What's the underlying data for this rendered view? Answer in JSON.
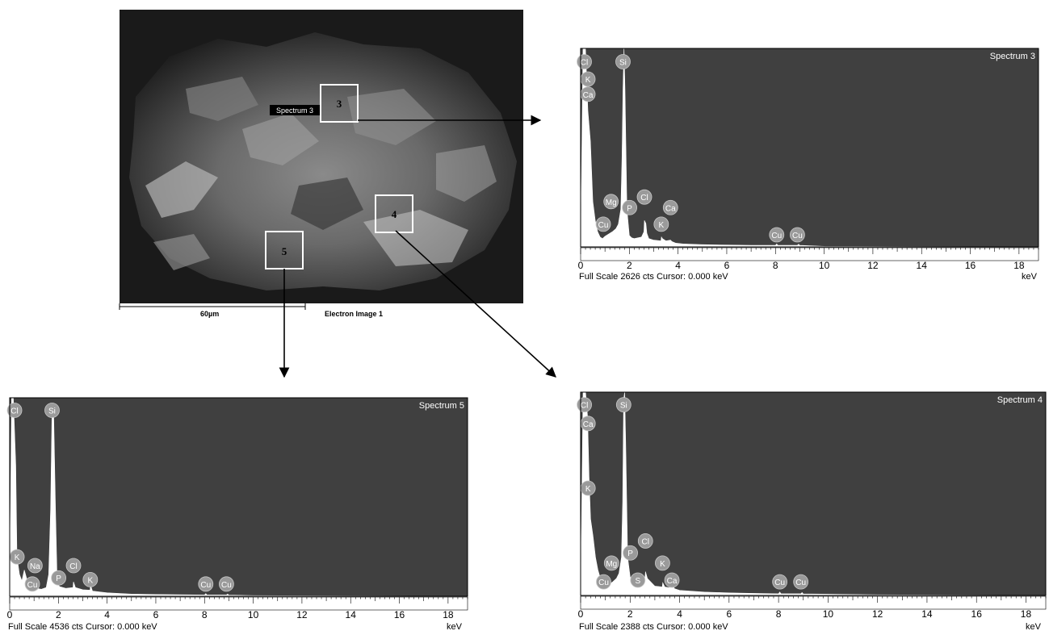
{
  "sem_image": {
    "scale_bar": "60µm",
    "image_title": "Electron Image 1",
    "regions": [
      {
        "number": "5",
        "label": ""
      },
      {
        "number": "3",
        "label": "Spectrum 3"
      },
      {
        "number": "4",
        "label": ""
      }
    ]
  },
  "colors": {
    "plot_background": "#404040",
    "spectrum_fill": "#ffffff",
    "peak_marker": "#9a9a9a",
    "arrow": "#000000"
  },
  "chart_data": [
    {
      "type": "area",
      "title": "Spectrum 3",
      "caption": "Full Scale 2626 cts  Cursor: 0.000 keV",
      "xlabel": "keV",
      "xlim": [
        0,
        18.8
      ],
      "xticks": [
        0,
        2,
        4,
        6,
        8,
        10,
        12,
        14,
        16,
        18
      ],
      "ylim": [
        0,
        2626
      ],
      "profile_x": [
        0,
        0.1,
        0.2,
        0.3,
        0.4,
        0.5,
        0.6,
        0.7,
        0.8,
        0.9,
        1.0,
        1.2,
        1.3,
        1.45,
        1.55,
        1.65,
        1.7,
        1.74,
        1.78,
        1.82,
        1.9,
        2.0,
        2.1,
        2.2,
        2.5,
        2.6,
        2.62,
        2.68,
        2.72,
        2.8,
        3.0,
        3.3,
        3.32,
        3.36,
        3.5,
        3.69,
        3.75,
        3.9,
        4.2,
        5,
        6,
        7,
        8,
        8.05,
        8.1,
        8.6,
        8.9,
        8.95,
        9.0,
        9.4,
        10,
        18.8
      ],
      "profile_y": [
        0,
        2626,
        2626,
        1800,
        1400,
        600,
        350,
        200,
        130,
        110,
        140,
        180,
        200,
        240,
        300,
        500,
        1200,
        2100,
        2626,
        2100,
        500,
        150,
        120,
        110,
        130,
        200,
        350,
        310,
        180,
        110,
        90,
        80,
        130,
        110,
        80,
        90,
        70,
        50,
        40,
        30,
        25,
        20,
        20,
        40,
        20,
        20,
        20,
        35,
        20,
        15,
        8,
        0
      ],
      "peak_labels": [
        {
          "element": "Cl",
          "x": 0.15,
          "y": 2450
        },
        {
          "element": "K",
          "x": 0.3,
          "y": 2220
        },
        {
          "element": "Ca",
          "x": 0.3,
          "y": 2020
        },
        {
          "element": "Si",
          "x": 1.74,
          "y": 2450
        },
        {
          "element": "Mg",
          "x": 1.25,
          "y": 600
        },
        {
          "element": "Cu",
          "x": 0.93,
          "y": 300
        },
        {
          "element": "P",
          "x": 2.01,
          "y": 520
        },
        {
          "element": "Cl",
          "x": 2.62,
          "y": 660
        },
        {
          "element": "Ca",
          "x": 3.69,
          "y": 520
        },
        {
          "element": "K",
          "x": 3.31,
          "y": 300
        },
        {
          "element": "Cu",
          "x": 8.05,
          "y": 160
        },
        {
          "element": "Cu",
          "x": 8.9,
          "y": 160
        }
      ]
    },
    {
      "type": "area",
      "title": "Spectrum 5",
      "caption": "Full Scale 4536 cts  Cursor: 0.000 keV",
      "xlabel": "keV",
      "xlim": [
        0,
        18.8
      ],
      "xticks": [
        0,
        2,
        4,
        6,
        8,
        10,
        12,
        14,
        16,
        18
      ],
      "ylim": [
        0,
        4536
      ],
      "profile_x": [
        0,
        0.08,
        0.15,
        0.25,
        0.3,
        0.4,
        0.5,
        0.6,
        0.7,
        0.8,
        1.0,
        1.04,
        1.1,
        1.3,
        1.5,
        1.6,
        1.68,
        1.74,
        1.8,
        1.88,
        1.95,
        2.05,
        2.3,
        2.6,
        2.62,
        2.7,
        3.0,
        3.3,
        3.32,
        3.4,
        4,
        5,
        6,
        8,
        8.05,
        8.1,
        8.9,
        8.95,
        9.0,
        10,
        18.8
      ],
      "profile_y": [
        0,
        4536,
        4536,
        3000,
        900,
        500,
        350,
        600,
        400,
        250,
        200,
        300,
        180,
        160,
        200,
        500,
        2000,
        4300,
        4300,
        2000,
        300,
        220,
        180,
        200,
        330,
        200,
        150,
        140,
        250,
        120,
        80,
        50,
        40,
        30,
        60,
        30,
        30,
        50,
        25,
        15,
        0
      ],
      "peak_labels": [
        {
          "element": "Cl",
          "x": 0.2,
          "y": 4250
        },
        {
          "element": "Si",
          "x": 1.74,
          "y": 4250
        },
        {
          "element": "K",
          "x": 0.3,
          "y": 900
        },
        {
          "element": "Na",
          "x": 1.04,
          "y": 700
        },
        {
          "element": "Cu",
          "x": 0.93,
          "y": 280
        },
        {
          "element": "P",
          "x": 2.01,
          "y": 420
        },
        {
          "element": "Cl",
          "x": 2.62,
          "y": 700
        },
        {
          "element": "K",
          "x": 3.31,
          "y": 380
        },
        {
          "element": "Cu",
          "x": 8.05,
          "y": 280
        },
        {
          "element": "Cu",
          "x": 8.9,
          "y": 280
        }
      ]
    },
    {
      "type": "area",
      "title": "Spectrum 4",
      "caption": "Full Scale 2388 cts  Cursor: 0.000 keV",
      "xlabel": "keV",
      "xlim": [
        0,
        18.8
      ],
      "xticks": [
        0,
        2,
        4,
        6,
        8,
        10,
        12,
        14,
        16,
        18
      ],
      "ylim": [
        0,
        2388
      ],
      "profile_x": [
        0,
        0.1,
        0.2,
        0.28,
        0.34,
        0.4,
        0.5,
        0.6,
        0.7,
        0.8,
        0.9,
        1.0,
        1.2,
        1.3,
        1.45,
        1.55,
        1.65,
        1.7,
        1.74,
        1.78,
        1.82,
        1.9,
        2.0,
        2.1,
        2.3,
        2.31,
        2.35,
        2.5,
        2.6,
        2.62,
        2.7,
        3.0,
        3.3,
        3.32,
        3.4,
        3.6,
        3.69,
        3.8,
        4,
        5,
        6,
        7,
        8,
        8.05,
        8.1,
        8.9,
        8.95,
        9.0,
        10,
        12,
        18.8
      ],
      "profile_y": [
        0,
        2388,
        2388,
        2100,
        1400,
        900,
        700,
        450,
        300,
        200,
        150,
        130,
        140,
        160,
        200,
        260,
        450,
        1100,
        2300,
        2388,
        1800,
        450,
        220,
        140,
        130,
        170,
        130,
        150,
        200,
        280,
        200,
        110,
        100,
        150,
        100,
        90,
        130,
        80,
        60,
        40,
        30,
        25,
        20,
        40,
        20,
        20,
        35,
        18,
        15,
        8,
        0
      ],
      "peak_labels": [
        {
          "element": "Cl",
          "x": 0.15,
          "y": 2240
        },
        {
          "element": "Ca",
          "x": 0.3,
          "y": 2020
        },
        {
          "element": "K",
          "x": 0.3,
          "y": 1260
        },
        {
          "element": "Si",
          "x": 1.74,
          "y": 2240
        },
        {
          "element": "Mg",
          "x": 1.25,
          "y": 380
        },
        {
          "element": "Cu",
          "x": 0.93,
          "y": 160
        },
        {
          "element": "P",
          "x": 2.01,
          "y": 500
        },
        {
          "element": "Cl",
          "x": 2.62,
          "y": 640
        },
        {
          "element": "S",
          "x": 2.31,
          "y": 180
        },
        {
          "element": "K",
          "x": 3.31,
          "y": 380
        },
        {
          "element": "Ca",
          "x": 3.69,
          "y": 180
        },
        {
          "element": "Cu",
          "x": 8.05,
          "y": 160
        },
        {
          "element": "Cu",
          "x": 8.9,
          "y": 160
        }
      ]
    }
  ]
}
